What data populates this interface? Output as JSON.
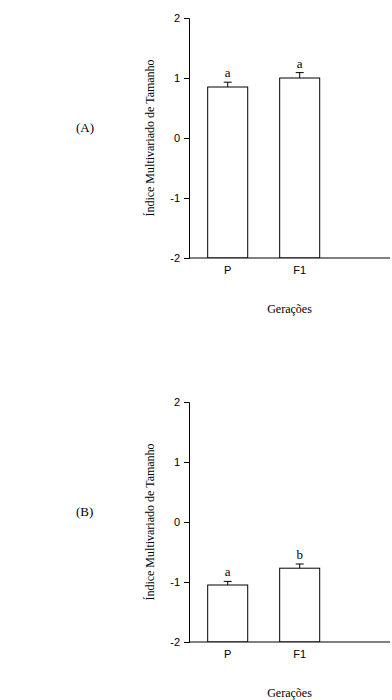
{
  "chart_data": [
    {
      "type": "bar",
      "title": "(A)",
      "x_label": "Gerações",
      "y_label": "Índice Multivariado de Tamanho",
      "categories": [
        "P",
        "F1"
      ],
      "values": [
        0.85,
        1.0
      ],
      "errors": [
        0.08,
        0.09
      ],
      "annotations": [
        "a",
        "a"
      ],
      "color": "#ffffff",
      "ylim": [
        -2,
        2
      ],
      "yticks": [
        -2,
        -1,
        0,
        1,
        2
      ],
      "grid": false
    },
    {
      "type": "bar",
      "title": "(B)",
      "x_label": "Gerações",
      "y_label": "Índice Multivariado de Tamanho",
      "categories": [
        "P",
        "F1"
      ],
      "values": [
        -1.05,
        -0.77
      ],
      "errors": [
        0.06,
        0.07
      ],
      "annotations": [
        "a",
        "b"
      ],
      "color": "#ffffff",
      "ylim": [
        -2,
        2
      ],
      "yticks": [
        -2,
        -1,
        0,
        1,
        2
      ],
      "grid": false
    }
  ]
}
